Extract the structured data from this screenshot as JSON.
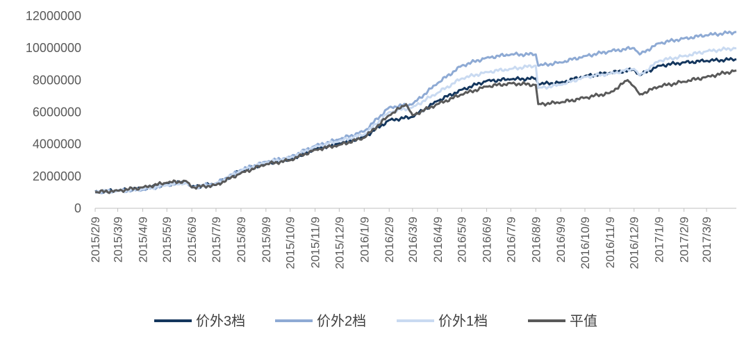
{
  "chart_data": {
    "type": "line",
    "title": "",
    "xlabel": "",
    "ylabel": "",
    "ylim": [
      0,
      12000000
    ],
    "y_ticks": [
      "0",
      "2000000",
      "4000000",
      "6000000",
      "8000000",
      "10000000",
      "12000000"
    ],
    "x_ticks": [
      "2015/2/9",
      "2015/3/9",
      "2015/4/9",
      "2015/5/9",
      "2015/6/9",
      "2015/7/9",
      "2015/8/9",
      "2015/9/9",
      "2015/10/9",
      "2015/11/9",
      "2015/12/9",
      "2016/1/9",
      "2016/2/9",
      "2016/3/9",
      "2016/4/9",
      "2016/5/9",
      "2016/6/9",
      "2016/7/9",
      "2016/8/9",
      "2016/9/9",
      "2016/10/9",
      "2016/11/9",
      "2016/12/9",
      "2017/1/9",
      "2017/2/9",
      "2017/3/9"
    ],
    "x_end": "2017/4/15",
    "grid": false,
    "legend_position": "bottom",
    "series": [
      {
        "name": "价外3档",
        "color": "#14365d",
        "points": [
          [
            "2015/2/9",
            1050000
          ],
          [
            "2015/3/9",
            1100000
          ],
          [
            "2015/4/9",
            1250000
          ],
          [
            "2015/5/9",
            1500000
          ],
          [
            "2015/6/2",
            1650000
          ],
          [
            "2015/6/9",
            1350000
          ],
          [
            "2015/7/9",
            1500000
          ],
          [
            "2015/8/9",
            2350000
          ],
          [
            "2015/9/9",
            2800000
          ],
          [
            "2015/10/9",
            3050000
          ],
          [
            "2015/11/9",
            3700000
          ],
          [
            "2015/12/9",
            4050000
          ],
          [
            "2016/1/9",
            4450000
          ],
          [
            "2016/2/9",
            5500000
          ],
          [
            "2016/3/9",
            5700000
          ],
          [
            "2016/4/9",
            6700000
          ],
          [
            "2016/5/9",
            7400000
          ],
          [
            "2016/6/9",
            7950000
          ],
          [
            "2016/7/9",
            8050000
          ],
          [
            "2016/8/9",
            8100000
          ],
          [
            "2016/8/12",
            7750000
          ],
          [
            "2016/9/9",
            7850000
          ],
          [
            "2016/10/9",
            8250000
          ],
          [
            "2016/11/9",
            8450000
          ],
          [
            "2016/12/9",
            8650000
          ],
          [
            "2016/12/16",
            8300000
          ],
          [
            "2017/1/9",
            8900000
          ],
          [
            "2017/2/9",
            9100000
          ],
          [
            "2017/3/9",
            9200000
          ],
          [
            "2017/4/15",
            9300000
          ]
        ]
      },
      {
        "name": "价外2档",
        "color": "#8eaad4",
        "points": [
          [
            "2015/2/9",
            1000000
          ],
          [
            "2015/3/9",
            1100000
          ],
          [
            "2015/4/9",
            1150000
          ],
          [
            "2015/5/9",
            1450000
          ],
          [
            "2015/6/2",
            1600000
          ],
          [
            "2015/6/9",
            1300000
          ],
          [
            "2015/7/9",
            1550000
          ],
          [
            "2015/8/9",
            2400000
          ],
          [
            "2015/9/9",
            2900000
          ],
          [
            "2015/10/9",
            3200000
          ],
          [
            "2015/11/9",
            3900000
          ],
          [
            "2015/12/9",
            4300000
          ],
          [
            "2016/1/9",
            4800000
          ],
          [
            "2016/2/9",
            6300000
          ],
          [
            "2016/3/9",
            6500000
          ],
          [
            "2016/4/9",
            7800000
          ],
          [
            "2016/5/9",
            8900000
          ],
          [
            "2016/6/9",
            9400000
          ],
          [
            "2016/7/9",
            9600000
          ],
          [
            "2016/8/9",
            9600000
          ],
          [
            "2016/8/12",
            8900000
          ],
          [
            "2016/9/9",
            9100000
          ],
          [
            "2016/10/9",
            9500000
          ],
          [
            "2016/11/9",
            9800000
          ],
          [
            "2016/12/9",
            10000000
          ],
          [
            "2016/12/16",
            9600000
          ],
          [
            "2017/1/9",
            10300000
          ],
          [
            "2017/2/9",
            10600000
          ],
          [
            "2017/3/9",
            10800000
          ],
          [
            "2017/4/15",
            11000000
          ]
        ]
      },
      {
        "name": "价外1档",
        "color": "#c9daf1",
        "points": [
          [
            "2015/2/9",
            1050000
          ],
          [
            "2015/3/9",
            1080000
          ],
          [
            "2015/4/9",
            1200000
          ],
          [
            "2015/5/9",
            1450000
          ],
          [
            "2015/6/2",
            1600000
          ],
          [
            "2015/6/9",
            1300000
          ],
          [
            "2015/7/9",
            1500000
          ],
          [
            "2015/8/9",
            2350000
          ],
          [
            "2015/9/9",
            2850000
          ],
          [
            "2015/10/9",
            3150000
          ],
          [
            "2015/11/9",
            3850000
          ],
          [
            "2015/12/9",
            4200000
          ],
          [
            "2016/1/9",
            4600000
          ],
          [
            "2016/2/9",
            6000000
          ],
          [
            "2016/3/9",
            6300000
          ],
          [
            "2016/4/9",
            7200000
          ],
          [
            "2016/5/9",
            8100000
          ],
          [
            "2016/6/9",
            8500000
          ],
          [
            "2016/7/9",
            8700000
          ],
          [
            "2016/8/9",
            8900000
          ],
          [
            "2016/8/12",
            7500000
          ],
          [
            "2016/9/9",
            7700000
          ],
          [
            "2016/10/9",
            8200000
          ],
          [
            "2016/11/9",
            8400000
          ],
          [
            "2016/12/9",
            8700000
          ],
          [
            "2016/12/16",
            8300000
          ],
          [
            "2017/1/9",
            9200000
          ],
          [
            "2017/2/9",
            9500000
          ],
          [
            "2017/3/9",
            9800000
          ],
          [
            "2017/4/15",
            10000000
          ]
        ]
      },
      {
        "name": "平值",
        "color": "#595959",
        "points": [
          [
            "2015/2/9",
            1000000
          ],
          [
            "2015/3/9",
            1100000
          ],
          [
            "2015/4/9",
            1300000
          ],
          [
            "2015/5/9",
            1600000
          ],
          [
            "2015/6/2",
            1700000
          ],
          [
            "2015/6/9",
            1300000
          ],
          [
            "2015/7/9",
            1450000
          ],
          [
            "2015/8/9",
            2200000
          ],
          [
            "2015/9/9",
            2750000
          ],
          [
            "2015/10/9",
            3000000
          ],
          [
            "2015/11/9",
            3650000
          ],
          [
            "2015/12/9",
            3950000
          ],
          [
            "2016/1/9",
            4400000
          ],
          [
            "2016/2/9",
            5800000
          ],
          [
            "2016/3/1",
            6500000
          ],
          [
            "2016/3/9",
            5800000
          ],
          [
            "2016/4/9",
            6500000
          ],
          [
            "2016/5/9",
            7100000
          ],
          [
            "2016/6/9",
            7600000
          ],
          [
            "2016/7/9",
            7800000
          ],
          [
            "2016/8/9",
            7700000
          ],
          [
            "2016/8/12",
            6500000
          ],
          [
            "2016/9/9",
            6600000
          ],
          [
            "2016/10/9",
            6900000
          ],
          [
            "2016/11/9",
            7200000
          ],
          [
            "2016/12/1",
            8000000
          ],
          [
            "2016/12/9",
            7600000
          ],
          [
            "2016/12/16",
            7100000
          ],
          [
            "2017/1/9",
            7600000
          ],
          [
            "2017/2/9",
            7900000
          ],
          [
            "2017/3/9",
            8200000
          ],
          [
            "2017/4/15",
            8600000
          ]
        ]
      }
    ]
  }
}
